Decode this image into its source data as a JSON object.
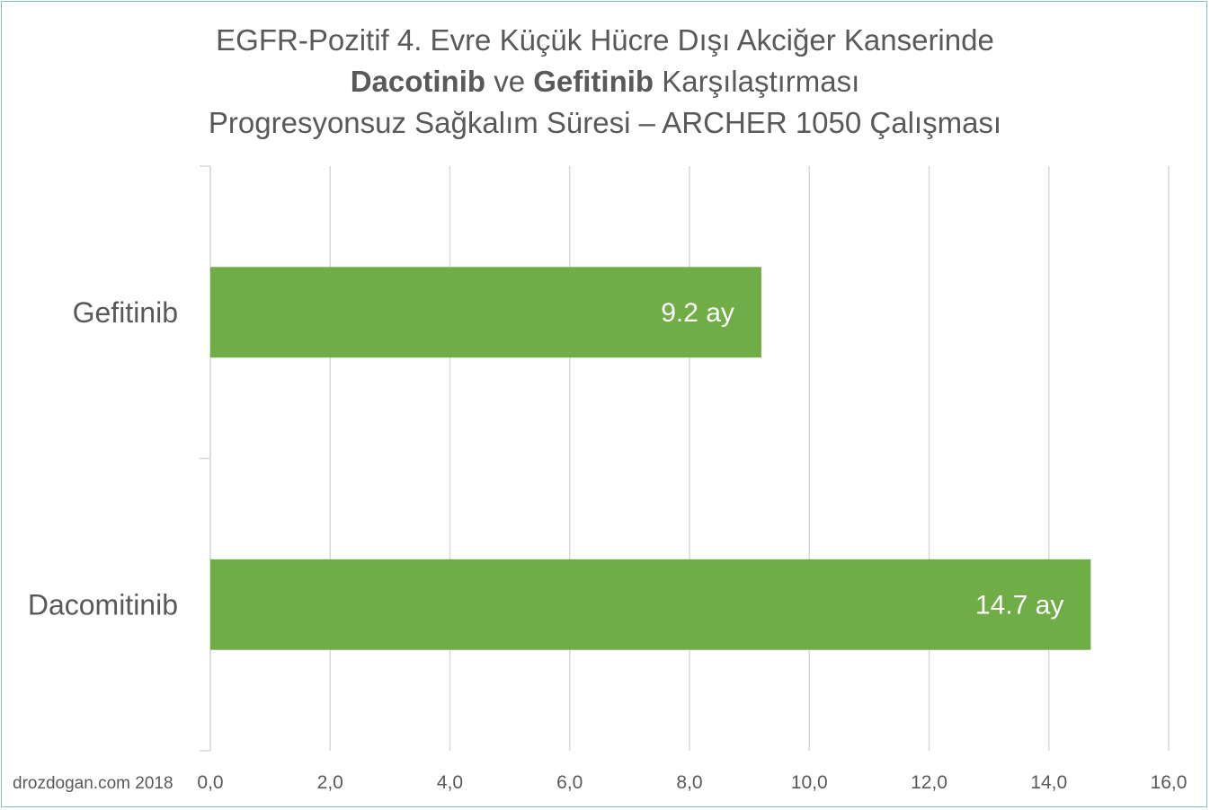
{
  "title": {
    "line1": "EGFR-Pozitif 4. Evre Küçük Hücre Dışı Akciğer Kanserinde",
    "line2_bold_a": "Dacotinib",
    "line2_mid": " ve ",
    "line2_bold_b": "Gefitinib",
    "line2_end": " Karşılaştırması",
    "line3": "Progresyonsuz Sağkalım Süresi – ARCHER 1050 Çalışması"
  },
  "credit": "drozdogan.com 2018",
  "colors": {
    "bar": "#70ad47",
    "grid": "#d9d9d9",
    "axis": "#d9d9d9",
    "text": "#595959",
    "label": "#ffffff",
    "frame": "#7fbfbf"
  },
  "chart_data": {
    "type": "bar",
    "orientation": "horizontal",
    "categories": [
      "Gefitinib",
      "Dacomitinib"
    ],
    "values": [
      9.2,
      14.7
    ],
    "data_labels": [
      "9.2 ay",
      "14.7 ay"
    ],
    "xlim": [
      0,
      16
    ],
    "x_ticks": [
      0,
      2,
      4,
      6,
      8,
      10,
      12,
      14,
      16
    ],
    "x_tick_labels": [
      "0,0",
      "2,0",
      "4,0",
      "6,0",
      "8,0",
      "10,0",
      "12,0",
      "14,0",
      "16,0"
    ],
    "grid": true,
    "legend": "none"
  }
}
